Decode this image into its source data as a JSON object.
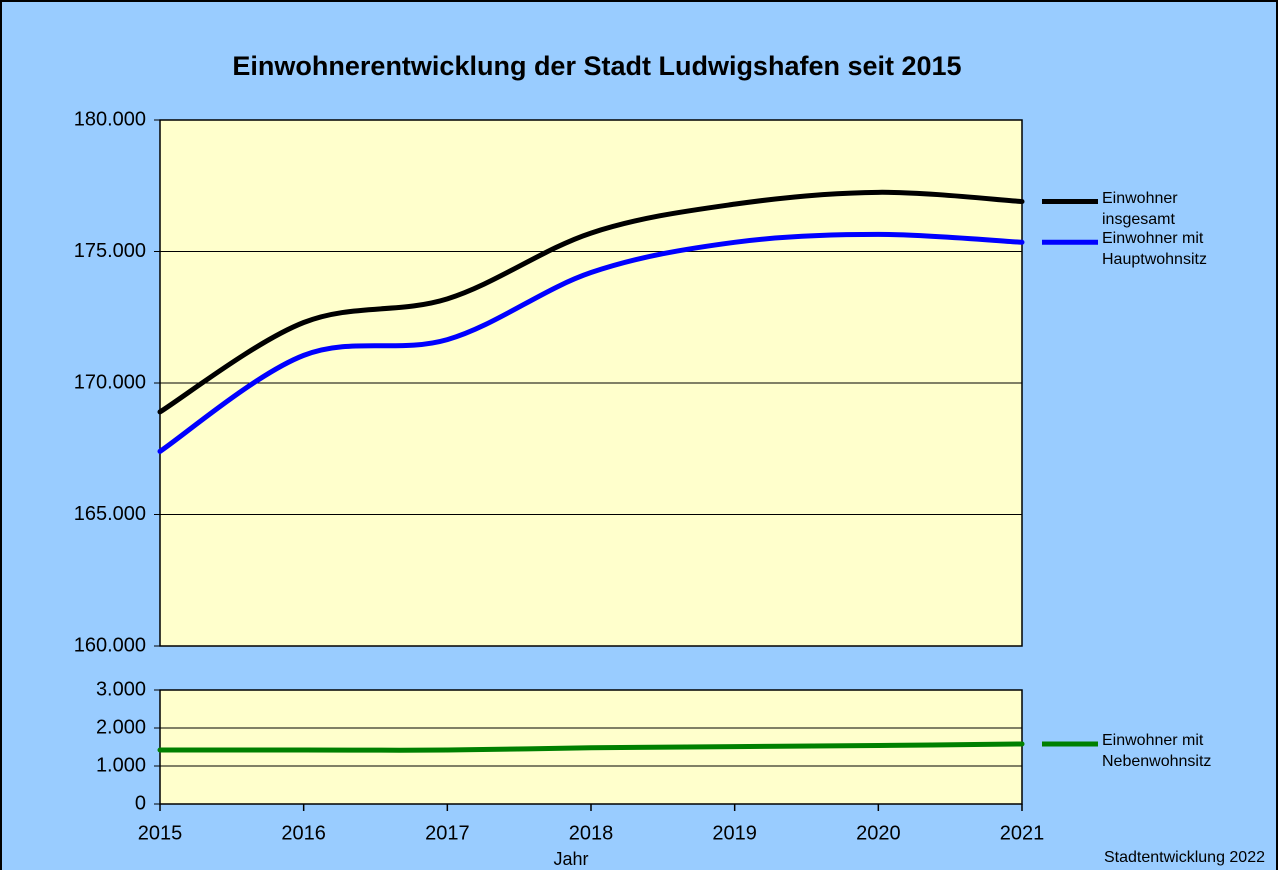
{
  "chart_data": [
    {
      "type": "line",
      "title": "Einwohnerentwicklung der Stadt Ludwigshafen seit 2015",
      "x": [
        2015,
        2016,
        2017,
        2018,
        2019,
        2020,
        2021
      ],
      "xlim": [
        2015,
        2021
      ],
      "ylim": [
        160000,
        180000
      ],
      "yticks": [
        {
          "value": 160000,
          "label": "160.000"
        },
        {
          "value": 165000,
          "label": "165.000"
        },
        {
          "value": 170000,
          "label": "170.000"
        },
        {
          "value": 175000,
          "label": "175.000"
        },
        {
          "value": 180000,
          "label": "180.000"
        }
      ],
      "grid": true,
      "series": [
        {
          "name": "Einwohner insgesamt",
          "color": "#000000",
          "values": [
            168900,
            172300,
            173200,
            175700,
            176800,
            177250,
            176900
          ]
        },
        {
          "name": "Einwohner mit Hauptwohnsitz",
          "color": "#0000ff",
          "values": [
            167400,
            171050,
            171650,
            174200,
            175350,
            175650,
            175350
          ]
        }
      ]
    },
    {
      "type": "line",
      "x": [
        2015,
        2016,
        2017,
        2018,
        2019,
        2020,
        2021
      ],
      "xlim": [
        2015,
        2021
      ],
      "xticks": [
        2015,
        2016,
        2017,
        2018,
        2019,
        2020,
        2021
      ],
      "xlabel": "Jahr",
      "annotation": "Stadtentwicklung 2022",
      "ylim": [
        0,
        3000
      ],
      "yticks": [
        0,
        {
          "value": 1000,
          "label": "1.000"
        },
        {
          "value": 2000,
          "label": "2.000"
        },
        {
          "value": 3000,
          "label": "3.000"
        }
      ],
      "grid": true,
      "series": [
        {
          "name": "Einwohner mit Nebenwohnsitz",
          "color": "#008000",
          "values": [
            1420,
            1420,
            1420,
            1480,
            1510,
            1540,
            1580
          ]
        }
      ]
    }
  ]
}
